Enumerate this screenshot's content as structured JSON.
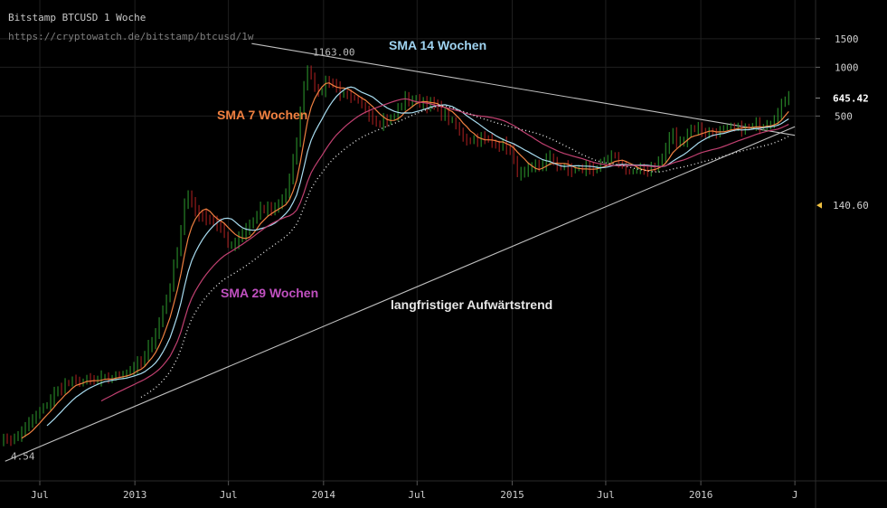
{
  "header": {
    "title": "Bitstamp BTCUSD 1 Woche",
    "url": "https://cryptowatch.de/bitstamp/btcusd/1w"
  },
  "colors": {
    "background": "#000000",
    "grid": "#1f1f1f",
    "up_candle": "#2e9d2e",
    "down_candle": "#b32222",
    "sma7": "#f08040",
    "sma14": "#a8dcf0",
    "sma29": "#c04070",
    "dotted": "#e6e6e6",
    "trendline": "#bfbfbf",
    "marker": "#f0c040"
  },
  "annotations": [
    {
      "text": "SMA 14 Wochen",
      "color": "#9fd3f0"
    },
    {
      "text": "SMA 7 Wochen",
      "color": "#f08040"
    },
    {
      "text": "SMA 29 Wochen",
      "color": "#c050c0"
    },
    {
      "text": "langfristiger Aufwärtstrend",
      "color": "#e6e6e6"
    }
  ],
  "chart_data": {
    "type": "candlestick",
    "y_scale": "log",
    "ylim": [
      2.8,
      2600
    ],
    "xlim": [
      "2012-04-15",
      "2016-08-10"
    ],
    "grid": true,
    "x_ticks": [
      {
        "label": "Jul",
        "date": "2012-07-01"
      },
      {
        "label": "2013",
        "date": "2013-01-01"
      },
      {
        "label": "Jul",
        "date": "2013-07-01"
      },
      {
        "label": "2014",
        "date": "2014-01-01"
      },
      {
        "label": "Jul",
        "date": "2014-07-01"
      },
      {
        "label": "2015",
        "date": "2015-01-01"
      },
      {
        "label": "Jul",
        "date": "2015-07-01"
      },
      {
        "label": "2016",
        "date": "2016-01-01"
      },
      {
        "label": "J",
        "date": "2016-07-01"
      }
    ],
    "y_ticks": [
      1500,
      1000,
      500
    ],
    "price_labels": [
      {
        "text": "645.42",
        "value": 645.42,
        "style": "last"
      },
      {
        "text": "140.60",
        "value": 140.6,
        "style": "marker"
      }
    ],
    "extreme_labels": [
      {
        "text": "1163.00",
        "value": 1163,
        "date": "2013-12-01"
      },
      {
        "text": "4.54",
        "value": 4.54,
        "date": "2012-04-22"
      }
    ],
    "price_path": [
      [
        "2012-04-15",
        5.0
      ],
      [
        "2012-05-15",
        5.1
      ],
      [
        "2012-06-15",
        6.5
      ],
      [
        "2012-07-10",
        8.0
      ],
      [
        "2012-08-15",
        11.0
      ],
      [
        "2012-09-15",
        11.5
      ],
      [
        "2012-10-15",
        11.5
      ],
      [
        "2012-11-15",
        12.0
      ],
      [
        "2012-12-15",
        13.3
      ],
      [
        "2013-01-15",
        15.0
      ],
      [
        "2013-02-15",
        25.0
      ],
      [
        "2013-03-10",
        45.0
      ],
      [
        "2013-03-30",
        95.0
      ],
      [
        "2013-04-10",
        170.0
      ],
      [
        "2013-04-25",
        130.0
      ],
      [
        "2013-05-15",
        120.0
      ],
      [
        "2013-06-15",
        105.0
      ],
      [
        "2013-07-05",
        75.0
      ],
      [
        "2013-08-01",
        95.0
      ],
      [
        "2013-09-01",
        130.0
      ],
      [
        "2013-10-01",
        135.0
      ],
      [
        "2013-10-25",
        180.0
      ],
      [
        "2013-11-10",
        350.0
      ],
      [
        "2013-11-28",
        1000.0
      ],
      [
        "2013-12-10",
        900.0
      ],
      [
        "2013-12-20",
        650.0
      ],
      [
        "2014-01-10",
        850.0
      ],
      [
        "2014-02-10",
        650.0
      ],
      [
        "2014-03-01",
        620.0
      ],
      [
        "2014-03-20",
        560.0
      ],
      [
        "2014-04-15",
        460.0
      ],
      [
        "2014-05-15",
        480.0
      ],
      [
        "2014-06-05",
        630.0
      ],
      [
        "2014-07-01",
        620.0
      ],
      [
        "2014-08-01",
        580.0
      ],
      [
        "2014-09-01",
        480.0
      ],
      [
        "2014-10-01",
        360.0
      ],
      [
        "2014-11-01",
        360.0
      ],
      [
        "2014-12-01",
        340.0
      ],
      [
        "2014-12-25",
        320.0
      ],
      [
        "2015-01-15",
        210.0
      ],
      [
        "2015-02-15",
        240.0
      ],
      [
        "2015-03-15",
        270.0
      ],
      [
        "2015-04-15",
        230.0
      ],
      [
        "2015-05-15",
        235.0
      ],
      [
        "2015-06-15",
        240.0
      ],
      [
        "2015-07-15",
        280.0
      ],
      [
        "2015-08-15",
        225.0
      ],
      [
        "2015-09-15",
        230.0
      ],
      [
        "2015-10-15",
        260.0
      ],
      [
        "2015-11-05",
        390.0
      ],
      [
        "2015-11-20",
        330.0
      ],
      [
        "2015-12-15",
        430.0
      ],
      [
        "2016-01-15",
        390.0
      ],
      [
        "2016-02-15",
        410.0
      ],
      [
        "2016-03-15",
        415.0
      ],
      [
        "2016-04-15",
        430.0
      ],
      [
        "2016-05-15",
        460.0
      ],
      [
        "2016-06-05",
        580.0
      ],
      [
        "2016-06-20",
        645.42
      ]
    ],
    "trendlines": [
      {
        "name": "langfristiger Aufwärtstrend",
        "from": [
          "2012-04-25",
          3.7
        ],
        "to": [
          "2016-07-01",
          430.0
        ]
      },
      {
        "from": [
          "2013-08-15",
          1400.0
        ],
        "to": [
          "2016-07-01",
          380.0
        ]
      }
    ],
    "moving_averages": [
      {
        "name": "SMA 7 Wochen",
        "window": 7
      },
      {
        "name": "SMA 14 Wochen",
        "window": 14
      },
      {
        "name": "SMA 29 Wochen",
        "window": 29
      }
    ]
  }
}
